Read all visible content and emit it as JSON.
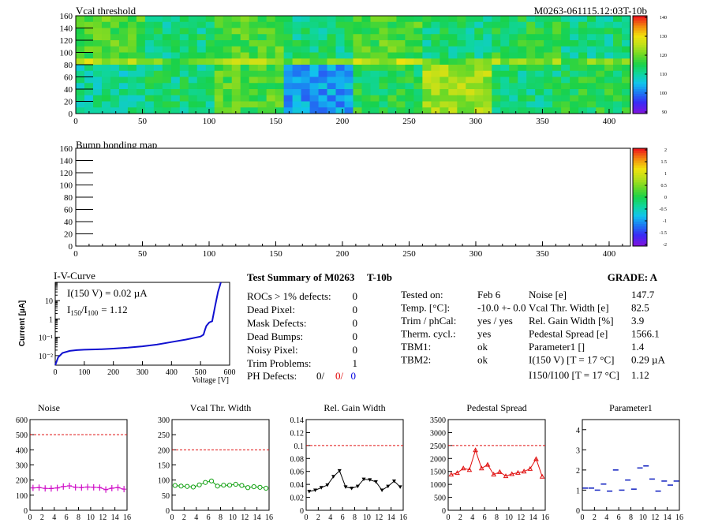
{
  "header": {
    "top_title": "Vcal threshold",
    "module_id": "M0263-061115.12:03T-10b",
    "bump_title": "Bump bonding map"
  },
  "maps": {
    "x_ticks": [
      "0",
      "50",
      "100",
      "150",
      "200",
      "250",
      "300",
      "350",
      "400"
    ],
    "y_ticks": [
      "0",
      "20",
      "40",
      "60",
      "80",
      "100",
      "120",
      "140",
      "160"
    ],
    "xlim": [
      0,
      416
    ],
    "ylim": [
      0,
      160
    ],
    "roc_grid": {
      "cols": 8,
      "rows": 2
    },
    "vcal_roc_means": [
      [
        118,
        112,
        118,
        112,
        118,
        112,
        115,
        112
      ],
      [
        110,
        112,
        118,
        102,
        115,
        124,
        112,
        115
      ]
    ],
    "vcal_palette": [
      "#7a16e0",
      "#3a2bf5",
      "#1e76f2",
      "#11c2ee",
      "#0fd6a0",
      "#19d24a",
      "#6cd926",
      "#bbe01a",
      "#f2e10d",
      "#f28a0f",
      "#ee1b1b"
    ],
    "vcal_scale_labels": [
      "140",
      "130",
      "120",
      "110",
      "100",
      "90"
    ],
    "bump_scale_labels": [
      "2",
      "1.5",
      "1",
      "0.5",
      "0",
      "-0.5",
      "-1",
      "-1.5",
      "-2"
    ]
  },
  "iv_curve": {
    "title": "I-V-Curve",
    "ylabel": "Current [µA]",
    "xlabel": "Voltage [V]",
    "x_ticks": [
      "0",
      "100",
      "200",
      "300",
      "400",
      "500",
      "600"
    ],
    "y_ticks": [
      "10⁻²",
      "10⁻¹",
      "1",
      "10"
    ],
    "annotation_1": "I(150 V) = 0.02 µA",
    "annotation_2_main": "I",
    "annotation_2_sub1": "150",
    "annotation_2_mid": "/I",
    "annotation_2_sub2": "100",
    "annotation_2_value": "=  1.12"
  },
  "summary": {
    "title": "Test Summary of M0263",
    "tag": "T-10b",
    "grade_label": "GRADE:  A",
    "left_rows": [
      {
        "label": "ROCs > 1% defects:",
        "value": "0"
      },
      {
        "label": "Dead Pixel:",
        "value": "0"
      },
      {
        "label": "Mask Defects:",
        "value": "0"
      },
      {
        "label": "Dead Bumps:",
        "value": "0"
      },
      {
        "label": "Noisy Pixel:",
        "value": "0"
      },
      {
        "label": "Trim Problems:",
        "value": "1"
      }
    ],
    "ph_label": "PH Defects:",
    "ph_values": [
      "0/",
      "0/",
      "0"
    ],
    "ph_colors": [
      "#000000",
      "#e00000",
      "#0000e0"
    ],
    "mid_rows": [
      {
        "label": "Tested on:",
        "value": "Feb 6"
      },
      {
        "label": "Temp. [°C]:",
        "value": "-10.0 +- 0.0"
      },
      {
        "label": "Trim / phCal:",
        "value": "yes / yes"
      },
      {
        "label": "Therm. cycl.:",
        "value": "yes"
      },
      {
        "label": "TBM1:",
        "value": "ok"
      },
      {
        "label": "TBM2:",
        "value": "ok"
      }
    ],
    "right_rows": [
      {
        "label": "Noise [e]",
        "value": "147.7"
      },
      {
        "label": "Vcal Thr. Width [e]",
        "value": "82.5"
      },
      {
        "label": "Rel. Gain Width [%]",
        "value": "3.9"
      },
      {
        "label": "Pedestal Spread [e]",
        "value": "1566.1"
      },
      {
        "label": "Parameter1 []",
        "value": "1.4"
      },
      {
        "label": "I(150 V) [T = 17 °C]",
        "value": "0.29 µA"
      },
      {
        "label": "I150/I100 [T = 17 °C]",
        "value": "1.12"
      }
    ]
  },
  "chart_data": [
    {
      "type": "line",
      "title": "I-V-Curve",
      "xlabel": "Voltage [V]",
      "ylabel": "Current [µA]",
      "log_y": true,
      "xlim": [
        0,
        600
      ],
      "ylim": [
        0.003,
        100
      ],
      "x": [
        0,
        10,
        25,
        50,
        75,
        100,
        150,
        200,
        250,
        300,
        350,
        400,
        450,
        500,
        510,
        515,
        520,
        530,
        540,
        550,
        560,
        570
      ],
      "values": [
        0.003,
        0.008,
        0.014,
        0.018,
        0.02,
        0.021,
        0.022,
        0.024,
        0.027,
        0.032,
        0.04,
        0.055,
        0.075,
        0.11,
        0.14,
        0.25,
        0.42,
        0.65,
        0.75,
        5,
        30,
        100
      ],
      "color": "#1010d0"
    },
    {
      "type": "line",
      "title": "Noise",
      "xlim": [
        0,
        16
      ],
      "ylim": [
        0,
        600
      ],
      "y_ticks": [
        0,
        100,
        200,
        300,
        400,
        500,
        600
      ],
      "threshold": 500,
      "marker": "cross",
      "color": "#d010c8",
      "x": [
        0,
        1,
        2,
        3,
        4,
        5,
        6,
        7,
        8,
        9,
        10,
        11,
        12,
        13,
        14,
        15
      ],
      "values": [
        148,
        150,
        145,
        144,
        148,
        157,
        162,
        152,
        150,
        154,
        152,
        150,
        137,
        146,
        150,
        140
      ]
    },
    {
      "type": "line",
      "title": "Vcal Thr. Width",
      "xlim": [
        0,
        16
      ],
      "ylim": [
        0,
        300
      ],
      "y_ticks": [
        0,
        50,
        100,
        150,
        200,
        250,
        300
      ],
      "threshold": 200,
      "marker": "circle",
      "color": "#10a010",
      "x": [
        0,
        1,
        2,
        3,
        4,
        5,
        6,
        7,
        8,
        9,
        10,
        11,
        12,
        13,
        14,
        15
      ],
      "values": [
        82,
        80,
        79,
        77,
        84,
        92,
        97,
        80,
        83,
        83,
        86,
        82,
        75,
        78,
        76,
        73
      ]
    },
    {
      "type": "line",
      "title": "Rel. Gain Width",
      "xlim": [
        0,
        16
      ],
      "ylim": [
        0,
        0.14
      ],
      "y_ticks": [
        0,
        0.02,
        0.04,
        0.06,
        0.08,
        0.1,
        0.12,
        0.14
      ],
      "threshold": 0.1,
      "marker": "triangle-down",
      "color": "#000000",
      "x": [
        0,
        1,
        2,
        3,
        4,
        5,
        6,
        7,
        8,
        9,
        10,
        11,
        12,
        13,
        14,
        15
      ],
      "values": [
        0.029,
        0.031,
        0.035,
        0.039,
        0.052,
        0.061,
        0.036,
        0.034,
        0.037,
        0.048,
        0.047,
        0.044,
        0.031,
        0.037,
        0.045,
        0.036
      ]
    },
    {
      "type": "line",
      "title": "Pedestal Spread",
      "xlim": [
        0,
        16
      ],
      "ylim": [
        0,
        3500
      ],
      "y_ticks": [
        0,
        500,
        1000,
        1500,
        2000,
        2500,
        3000,
        3500
      ],
      "threshold": 2500,
      "marker": "triangle-up",
      "color": "#e01010",
      "x": [
        0,
        1,
        2,
        3,
        4,
        5,
        6,
        7,
        8,
        9,
        10,
        11,
        12,
        13,
        14,
        15
      ],
      "values": [
        1380,
        1440,
        1620,
        1560,
        2320,
        1620,
        1760,
        1380,
        1480,
        1320,
        1400,
        1450,
        1500,
        1600,
        1980,
        1300
      ]
    },
    {
      "type": "scatter",
      "title": "Parameter1",
      "xlim": [
        0,
        16
      ],
      "ylim": [
        0,
        4.5
      ],
      "y_ticks": [
        0,
        1,
        2,
        3,
        4
      ],
      "marker": "hbar",
      "color": "#1020c0",
      "x": [
        0,
        1,
        2,
        3,
        4,
        5,
        6,
        7,
        8,
        9,
        10,
        11,
        12,
        13,
        14,
        15
      ],
      "values": [
        1.1,
        1.1,
        1.0,
        1.3,
        0.95,
        2.0,
        1.0,
        1.5,
        1.05,
        2.1,
        2.2,
        1.55,
        0.95,
        1.45,
        1.25,
        1.45
      ]
    }
  ]
}
